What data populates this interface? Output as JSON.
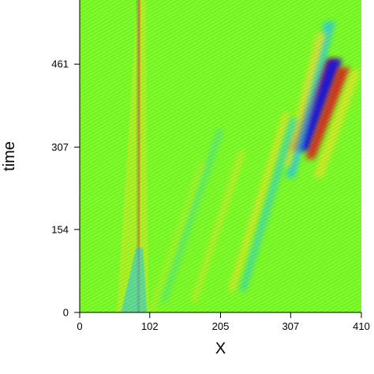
{
  "chart_data": {
    "type": "heatmap",
    "title": "",
    "xlabel": "X",
    "ylabel": "time",
    "xlim": [
      0,
      410
    ],
    "ylim": [
      0,
      580
    ],
    "x_ticks": [
      {
        "value": 0,
        "label": "0"
      },
      {
        "value": 102,
        "label": "102"
      },
      {
        "value": 205,
        "label": "205"
      },
      {
        "value": 307,
        "label": "307"
      },
      {
        "value": 410,
        "label": "410"
      }
    ],
    "y_ticks": [
      {
        "value": 0,
        "label": "0"
      },
      {
        "value": 154,
        "label": "154"
      },
      {
        "value": 307,
        "label": "307"
      },
      {
        "value": 461,
        "label": "461"
      }
    ],
    "colormap": [
      "#1616e6",
      "#1fc8ff",
      "#7fff2a",
      "#ffe628",
      "#e6161c"
    ],
    "background_color": "#7fff2a",
    "features": [
      {
        "kind": "stripe",
        "color": "#e6161c",
        "x": [
          305,
          322,
          358,
          378
        ],
        "t": [
          300,
          470
        ],
        "intensity": 0.9
      },
      {
        "kind": "stripe",
        "color": "#1616e6",
        "x": [
          318,
          334,
          362,
          382
        ],
        "t": [
          300,
          470
        ],
        "intensity": 0.95
      },
      {
        "kind": "stripe",
        "color": "#e6161c",
        "x": [
          328,
          342,
          376,
          394
        ],
        "t": [
          285,
          455
        ],
        "intensity": 0.85
      },
      {
        "kind": "stripe",
        "color": "#1fc8ff",
        "x": [
          300,
          313,
          356,
          372
        ],
        "t": [
          250,
          540
        ],
        "intensity": 0.7
      },
      {
        "kind": "stripe",
        "color": "#ffe628",
        "x": [
          296,
          306,
          346,
          360
        ],
        "t": [
          270,
          520
        ],
        "intensity": 0.7
      },
      {
        "kind": "stripe",
        "color": "#ffe628",
        "x": [
          340,
          354,
          394,
          410
        ],
        "t": [
          250,
          450
        ],
        "intensity": 0.6
      },
      {
        "kind": "stripe",
        "color": "#ffe628",
        "x": [
          216,
          226,
          296,
          308
        ],
        "t": [
          40,
          370
        ],
        "intensity": 0.6
      },
      {
        "kind": "stripe",
        "color": "#1fc8ff",
        "x": [
          232,
          242,
          306,
          318
        ],
        "t": [
          40,
          360
        ],
        "intensity": 0.5
      },
      {
        "kind": "stripe",
        "color": "#ffe628",
        "x": [
          162,
          170,
          232,
          242
        ],
        "t": [
          20,
          300
        ],
        "intensity": 0.45
      },
      {
        "kind": "stripe",
        "color": "#1fc8ff",
        "x": [
          118,
          126,
          200,
          210
        ],
        "t": [
          20,
          340
        ],
        "intensity": 0.3
      },
      {
        "kind": "stripe",
        "color": "#ffe628",
        "x": [
          100,
          108,
          175,
          184
        ],
        "t": [
          0,
          280
        ],
        "intensity": 0.3
      },
      {
        "kind": "band",
        "color": "#e6161c",
        "x": [
          85,
          87,
          85,
          88
        ],
        "t": [
          0,
          580
        ],
        "intensity": 0.8
      },
      {
        "kind": "band",
        "color": "#1616e6",
        "x": [
          83,
          84,
          83,
          85
        ],
        "t": [
          0,
          580
        ],
        "intensity": 0.4
      },
      {
        "kind": "band",
        "color": "#ffe628",
        "x": [
          54,
          100,
          84,
          96
        ],
        "t": [
          0,
          580
        ],
        "intensity": 0.35
      },
      {
        "kind": "band",
        "color": "#1fc8ff",
        "x": [
          60,
          98,
          82,
          92
        ],
        "t": [
          0,
          120
        ],
        "intensity": 0.5
      }
    ]
  }
}
